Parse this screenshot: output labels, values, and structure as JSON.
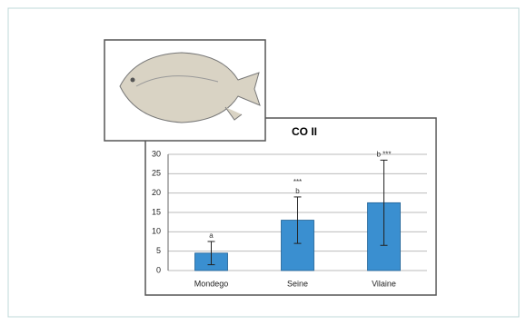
{
  "chart_data": {
    "type": "bar",
    "title": "CO II",
    "categories": [
      "Mondego",
      "Seine",
      "Vilaine"
    ],
    "values": [
      4.5,
      13,
      17.5
    ],
    "errors": [
      3,
      6,
      11
    ],
    "annotations": [
      [
        "a"
      ],
      [
        "***",
        "b"
      ],
      [
        "b ***"
      ]
    ],
    "color": "#3a8fd0",
    "ylim": [
      0,
      30
    ],
    "yticks": [
      0,
      5,
      10,
      15,
      20,
      25,
      30
    ],
    "grid": true
  }
}
